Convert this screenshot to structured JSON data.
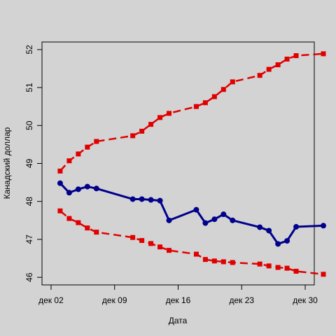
{
  "chart_data": {
    "type": "line",
    "xlabel": "Дата",
    "ylabel": "Канадский доллар",
    "x_ticks": [
      {
        "date": "2024-12-02",
        "label": "дек 02"
      },
      {
        "date": "2024-12-09",
        "label": "дек 09"
      },
      {
        "date": "2024-12-16",
        "label": "дек 16"
      },
      {
        "date": "2024-12-23",
        "label": "дек 23"
      },
      {
        "date": "2024-12-30",
        "label": "дек 30"
      }
    ],
    "xlim": [
      "2024-12-01",
      "2024-12-31"
    ],
    "y_ticks": [
      46,
      47,
      48,
      49,
      50,
      51,
      52
    ],
    "ylim": [
      45.8,
      52.2
    ],
    "grid": false,
    "x": [
      "2024-12-03",
      "2024-12-04",
      "2024-12-05",
      "2024-12-06",
      "2024-12-07",
      "2024-12-11",
      "2024-12-12",
      "2024-12-13",
      "2024-12-14",
      "2024-12-15",
      "2024-12-18",
      "2024-12-19",
      "2024-12-20",
      "2024-12-21",
      "2024-12-22",
      "2024-12-25",
      "2024-12-26",
      "2024-12-27",
      "2024-12-28",
      "2024-12-29",
      "2025-01-01"
    ],
    "series": [
      {
        "role": "upper",
        "color": "#e00000",
        "line_style": "dashed",
        "marker": "square",
        "values": [
          48.8,
          49.07,
          49.25,
          49.43,
          49.58,
          49.73,
          49.85,
          50.03,
          50.21,
          50.32,
          50.5,
          50.6,
          50.76,
          50.95,
          51.15,
          51.32,
          51.48,
          51.6,
          51.75,
          51.84,
          51.89
        ]
      },
      {
        "role": "main",
        "color": "#00008b",
        "line_style": "solid",
        "marker": "circle",
        "values": [
          48.48,
          48.23,
          48.32,
          48.39,
          48.34,
          48.06,
          48.06,
          48.04,
          48.02,
          47.5,
          47.78,
          47.43,
          47.53,
          47.66,
          47.5,
          47.32,
          47.23,
          46.88,
          46.96,
          47.33,
          47.36
        ]
      },
      {
        "role": "lower",
        "color": "#e00000",
        "line_style": "dashed",
        "marker": "square",
        "values": [
          47.75,
          47.55,
          47.44,
          47.3,
          47.19,
          47.05,
          46.97,
          46.89,
          46.8,
          46.71,
          46.61,
          46.47,
          46.43,
          46.41,
          46.39,
          46.35,
          46.3,
          46.26,
          46.24,
          46.16,
          46.08
        ]
      }
    ]
  }
}
